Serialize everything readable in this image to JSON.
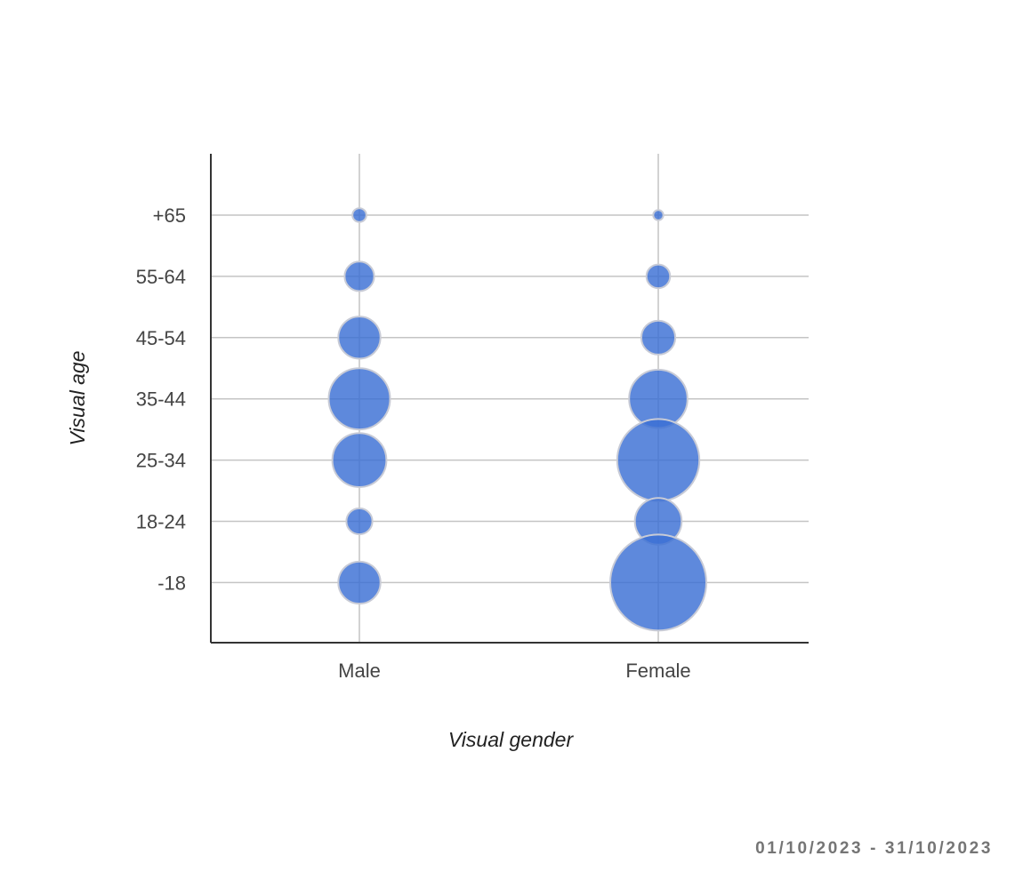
{
  "chart_data": {
    "type": "bubble",
    "title": "",
    "xlabel": "Visual gender",
    "ylabel": "Visual age",
    "x_categories": [
      "Male",
      "Female"
    ],
    "y_categories": [
      "-18",
      "18-24",
      "25-34",
      "35-44",
      "45-54",
      "55-64",
      "+65"
    ],
    "grid": true,
    "bubble_color": "#3a6fd4",
    "bubble_stroke": "#c8cbd6",
    "size_measure": "relative bubble size (max = 100)",
    "points": [
      {
        "gender": "Male",
        "age": "+65",
        "size": 2.1
      },
      {
        "gender": "Male",
        "age": "55-64",
        "size": 9.4
      },
      {
        "gender": "Male",
        "age": "45-54",
        "size": 19.2
      },
      {
        "gender": "Male",
        "age": "35-44",
        "size": 40.9
      },
      {
        "gender": "Male",
        "age": "25-34",
        "size": 31.7
      },
      {
        "gender": "Male",
        "age": "18-24",
        "size": 7.3
      },
      {
        "gender": "Male",
        "age": "-18",
        "size": 19.2
      },
      {
        "gender": "Female",
        "age": "+65",
        "size": 1.1
      },
      {
        "gender": "Female",
        "age": "55-64",
        "size": 6.1
      },
      {
        "gender": "Female",
        "age": "45-54",
        "size": 12.5
      },
      {
        "gender": "Female",
        "age": "35-44",
        "size": 36.8
      },
      {
        "gender": "Female",
        "age": "25-34",
        "size": 73.1
      },
      {
        "gender": "Female",
        "age": "18-24",
        "size": 23.8
      },
      {
        "gender": "Female",
        "age": "-18",
        "size": 100
      }
    ]
  },
  "footer": {
    "date_range": "01/10/2023 - 31/10/2023"
  }
}
